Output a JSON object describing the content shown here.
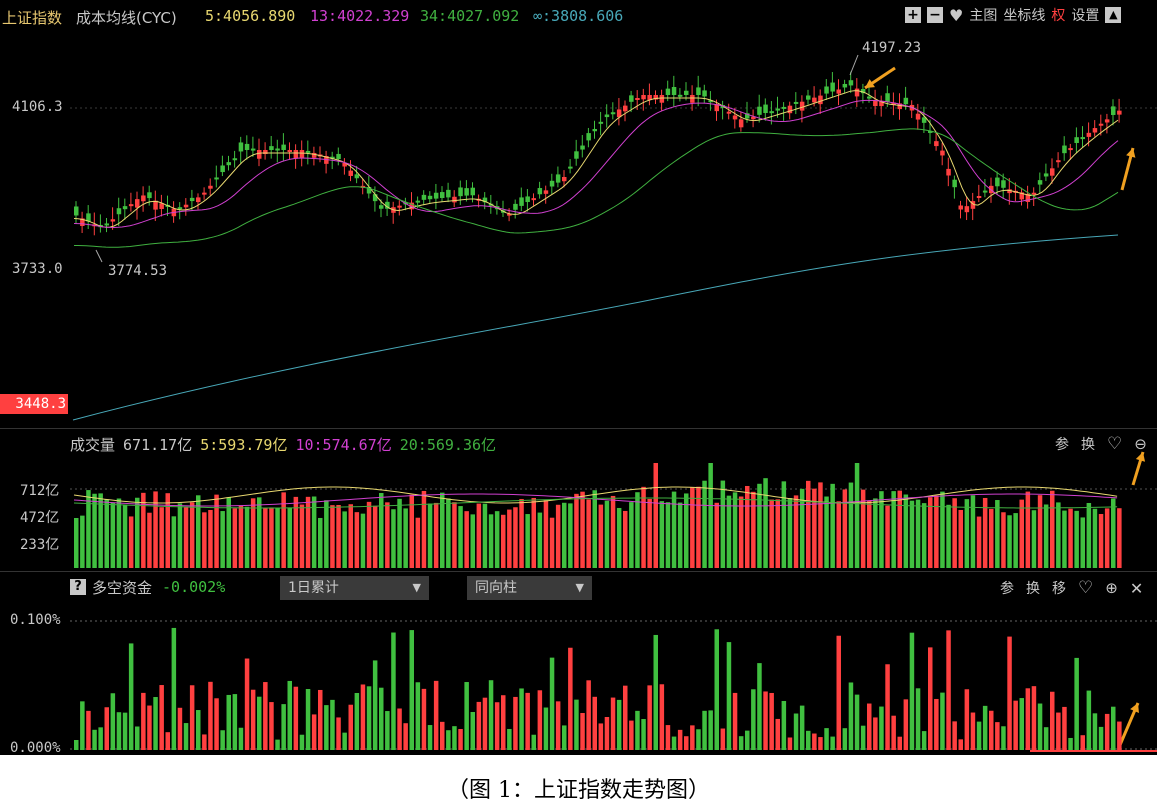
{
  "main_header": {
    "title": "上证指数",
    "indicator": "成本均线(CYC)",
    "ma5": "5:4056.890",
    "ma13": "13:4022.329",
    "ma34": "34:4027.092",
    "ma_inf": "∞:3808.606",
    "toolbar": {
      "plus_label": "+",
      "minus_label": "−",
      "heart_label": "♥",
      "main_label": "主图",
      "coord_label": "坐标线",
      "quan_label": "权",
      "settings_label": "设置"
    }
  },
  "price_axis": {
    "high_label": "4106.3",
    "mid_label": "3733.0",
    "low_label": "3448.3"
  },
  "annotations": {
    "peak_value": "4197.23",
    "trough_value": "3774.53"
  },
  "volume_panel": {
    "title": "成交量",
    "value": "671.17亿",
    "ma5": "5:593.79亿",
    "ma10": "10:574.67亿",
    "ma20": "20:569.36亿",
    "axis": [
      "712亿",
      "472亿",
      "233亿"
    ],
    "tools": {
      "ref": "参",
      "swap": "换"
    }
  },
  "capital_panel": {
    "title": "多空资金",
    "value": "-0.002%",
    "dropdown1": "1日累计",
    "dropdown2": "同向柱",
    "axis_top": "0.100%",
    "axis_bottom": "0.000%",
    "tools": {
      "ref": "参",
      "swap": "换",
      "move": "移"
    }
  },
  "colors": {
    "up": "#ff4040",
    "down": "#40c040",
    "ma5": "#e8d870",
    "ma13": "#d040d0",
    "ma34": "#40b040",
    "ma_inf": "#48a8b8"
  },
  "caption": "（图 1：上证指数走势图）"
}
